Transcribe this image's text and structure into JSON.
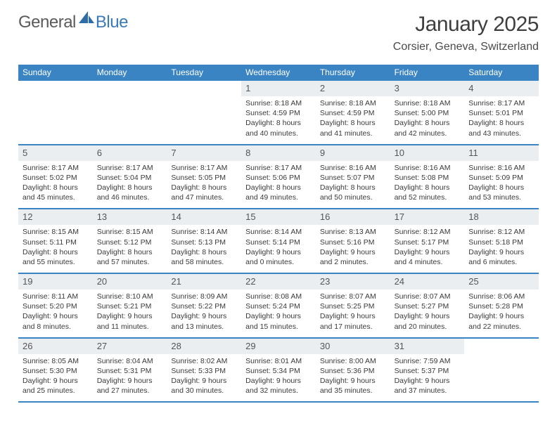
{
  "brand": {
    "word1": "General",
    "word2": "Blue",
    "icon_color": "#2f6da8"
  },
  "title": "January 2025",
  "location": "Corsier, Geneva, Switzerland",
  "header_bg": "#3b84c4",
  "daynum_bg": "#ebeef1",
  "weekdays": [
    "Sunday",
    "Monday",
    "Tuesday",
    "Wednesday",
    "Thursday",
    "Friday",
    "Saturday"
  ],
  "weeks": [
    [
      {
        "n": "",
        "sr": "",
        "ss": "",
        "dl": "",
        "dm": "",
        "empty": true
      },
      {
        "n": "",
        "sr": "",
        "ss": "",
        "dl": "",
        "dm": "",
        "empty": true
      },
      {
        "n": "",
        "sr": "",
        "ss": "",
        "dl": "",
        "dm": "",
        "empty": true
      },
      {
        "n": "1",
        "sr": "8:18 AM",
        "ss": "4:59 PM",
        "dl": "8 hours",
        "dm": "40 minutes."
      },
      {
        "n": "2",
        "sr": "8:18 AM",
        "ss": "4:59 PM",
        "dl": "8 hours",
        "dm": "41 minutes."
      },
      {
        "n": "3",
        "sr": "8:18 AM",
        "ss": "5:00 PM",
        "dl": "8 hours",
        "dm": "42 minutes."
      },
      {
        "n": "4",
        "sr": "8:17 AM",
        "ss": "5:01 PM",
        "dl": "8 hours",
        "dm": "43 minutes."
      }
    ],
    [
      {
        "n": "5",
        "sr": "8:17 AM",
        "ss": "5:02 PM",
        "dl": "8 hours",
        "dm": "45 minutes."
      },
      {
        "n": "6",
        "sr": "8:17 AM",
        "ss": "5:04 PM",
        "dl": "8 hours",
        "dm": "46 minutes."
      },
      {
        "n": "7",
        "sr": "8:17 AM",
        "ss": "5:05 PM",
        "dl": "8 hours",
        "dm": "47 minutes."
      },
      {
        "n": "8",
        "sr": "8:17 AM",
        "ss": "5:06 PM",
        "dl": "8 hours",
        "dm": "49 minutes."
      },
      {
        "n": "9",
        "sr": "8:16 AM",
        "ss": "5:07 PM",
        "dl": "8 hours",
        "dm": "50 minutes."
      },
      {
        "n": "10",
        "sr": "8:16 AM",
        "ss": "5:08 PM",
        "dl": "8 hours",
        "dm": "52 minutes."
      },
      {
        "n": "11",
        "sr": "8:16 AM",
        "ss": "5:09 PM",
        "dl": "8 hours",
        "dm": "53 minutes."
      }
    ],
    [
      {
        "n": "12",
        "sr": "8:15 AM",
        "ss": "5:11 PM",
        "dl": "8 hours",
        "dm": "55 minutes."
      },
      {
        "n": "13",
        "sr": "8:15 AM",
        "ss": "5:12 PM",
        "dl": "8 hours",
        "dm": "57 minutes."
      },
      {
        "n": "14",
        "sr": "8:14 AM",
        "ss": "5:13 PM",
        "dl": "8 hours",
        "dm": "58 minutes."
      },
      {
        "n": "15",
        "sr": "8:14 AM",
        "ss": "5:14 PM",
        "dl": "9 hours",
        "dm": "0 minutes."
      },
      {
        "n": "16",
        "sr": "8:13 AM",
        "ss": "5:16 PM",
        "dl": "9 hours",
        "dm": "2 minutes."
      },
      {
        "n": "17",
        "sr": "8:12 AM",
        "ss": "5:17 PM",
        "dl": "9 hours",
        "dm": "4 minutes."
      },
      {
        "n": "18",
        "sr": "8:12 AM",
        "ss": "5:18 PM",
        "dl": "9 hours",
        "dm": "6 minutes."
      }
    ],
    [
      {
        "n": "19",
        "sr": "8:11 AM",
        "ss": "5:20 PM",
        "dl": "9 hours",
        "dm": "8 minutes."
      },
      {
        "n": "20",
        "sr": "8:10 AM",
        "ss": "5:21 PM",
        "dl": "9 hours",
        "dm": "11 minutes."
      },
      {
        "n": "21",
        "sr": "8:09 AM",
        "ss": "5:22 PM",
        "dl": "9 hours",
        "dm": "13 minutes."
      },
      {
        "n": "22",
        "sr": "8:08 AM",
        "ss": "5:24 PM",
        "dl": "9 hours",
        "dm": "15 minutes."
      },
      {
        "n": "23",
        "sr": "8:07 AM",
        "ss": "5:25 PM",
        "dl": "9 hours",
        "dm": "17 minutes."
      },
      {
        "n": "24",
        "sr": "8:07 AM",
        "ss": "5:27 PM",
        "dl": "9 hours",
        "dm": "20 minutes."
      },
      {
        "n": "25",
        "sr": "8:06 AM",
        "ss": "5:28 PM",
        "dl": "9 hours",
        "dm": "22 minutes."
      }
    ],
    [
      {
        "n": "26",
        "sr": "8:05 AM",
        "ss": "5:30 PM",
        "dl": "9 hours",
        "dm": "25 minutes."
      },
      {
        "n": "27",
        "sr": "8:04 AM",
        "ss": "5:31 PM",
        "dl": "9 hours",
        "dm": "27 minutes."
      },
      {
        "n": "28",
        "sr": "8:02 AM",
        "ss": "5:33 PM",
        "dl": "9 hours",
        "dm": "30 minutes."
      },
      {
        "n": "29",
        "sr": "8:01 AM",
        "ss": "5:34 PM",
        "dl": "9 hours",
        "dm": "32 minutes."
      },
      {
        "n": "30",
        "sr": "8:00 AM",
        "ss": "5:36 PM",
        "dl": "9 hours",
        "dm": "35 minutes."
      },
      {
        "n": "31",
        "sr": "7:59 AM",
        "ss": "5:37 PM",
        "dl": "9 hours",
        "dm": "37 minutes."
      },
      {
        "n": "",
        "sr": "",
        "ss": "",
        "dl": "",
        "dm": "",
        "empty": true
      }
    ]
  ],
  "labels": {
    "sunrise": "Sunrise:",
    "sunset": "Sunset:",
    "daylight": "Daylight:",
    "and": "and"
  }
}
